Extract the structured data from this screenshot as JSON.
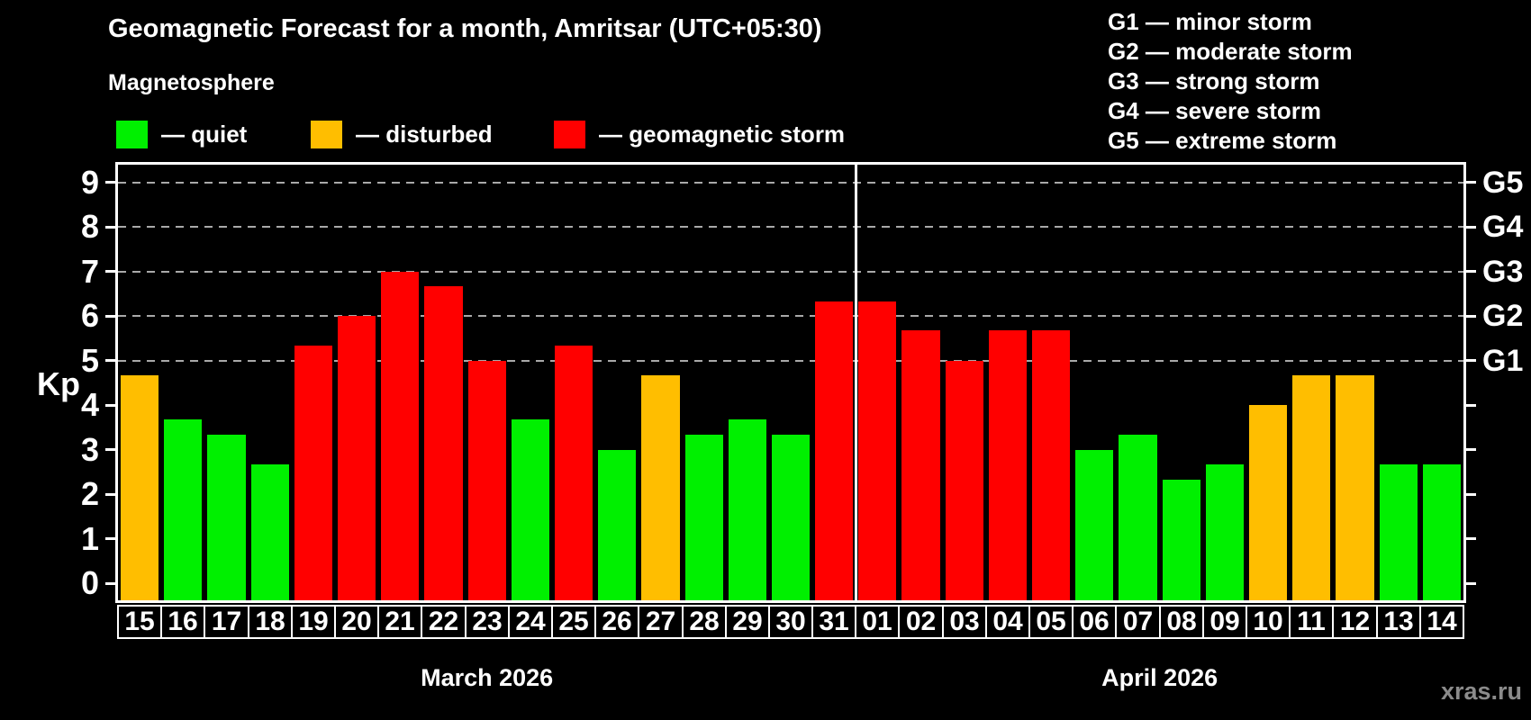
{
  "header": {
    "title": "Geomagnetic Forecast for a month, Amritsar (UTC+05:30)",
    "subtitle": "Magnetosphere"
  },
  "legend": {
    "items": [
      {
        "key": "quiet",
        "label": "— quiet",
        "color": "#00f000"
      },
      {
        "key": "disturbed",
        "label": "— disturbed",
        "color": "#ffbe00"
      },
      {
        "key": "storm",
        "label": "— geomagnetic storm",
        "color": "#ff0000"
      }
    ]
  },
  "storm_scale_legend": {
    "lines": [
      "G1 — minor storm",
      "G2 — moderate storm",
      "G3 — strong storm",
      "G4 — severe storm",
      "G5 — extreme storm"
    ]
  },
  "axes": {
    "y_label": "Kp",
    "y_ticks": [
      0,
      1,
      2,
      3,
      4,
      5,
      6,
      7,
      8,
      9
    ],
    "gridlines_at": [
      5,
      6,
      7,
      8,
      9
    ],
    "right_ticks": [
      {
        "value": 5,
        "label": "G1"
      },
      {
        "value": 6,
        "label": "G2"
      },
      {
        "value": 7,
        "label": "G3"
      },
      {
        "value": 8,
        "label": "G4"
      },
      {
        "value": 9,
        "label": "G5"
      }
    ]
  },
  "months": [
    {
      "label": "March 2026"
    },
    {
      "label": "April 2026"
    }
  ],
  "watermark": "xras.ru",
  "chart_data": {
    "type": "bar",
    "title": "Geomagnetic Forecast for a month, Amritsar (UTC+05:30)",
    "subtitle": "Magnetosphere",
    "xlabel": "",
    "ylabel": "Kp",
    "ylim": [
      0,
      9.4
    ],
    "grid": "dashed horizontal lines at Kp 5-9 only (G1-G5 levels)",
    "legend_position": "top-left",
    "bars": [
      {
        "day": "15",
        "month": "March 2026",
        "value": 4.67,
        "status": "disturbed"
      },
      {
        "day": "16",
        "month": "March 2026",
        "value": 3.67,
        "status": "quiet"
      },
      {
        "day": "17",
        "month": "March 2026",
        "value": 3.33,
        "status": "quiet"
      },
      {
        "day": "18",
        "month": "March 2026",
        "value": 2.67,
        "status": "quiet"
      },
      {
        "day": "19",
        "month": "March 2026",
        "value": 5.33,
        "status": "storm"
      },
      {
        "day": "20",
        "month": "March 2026",
        "value": 6.0,
        "status": "storm"
      },
      {
        "day": "21",
        "month": "March 2026",
        "value": 7.0,
        "status": "storm"
      },
      {
        "day": "22",
        "month": "March 2026",
        "value": 6.67,
        "status": "storm"
      },
      {
        "day": "23",
        "month": "March 2026",
        "value": 5.0,
        "status": "storm"
      },
      {
        "day": "24",
        "month": "March 2026",
        "value": 3.67,
        "status": "quiet"
      },
      {
        "day": "25",
        "month": "March 2026",
        "value": 5.33,
        "status": "storm"
      },
      {
        "day": "26",
        "month": "March 2026",
        "value": 3.0,
        "status": "quiet"
      },
      {
        "day": "27",
        "month": "March 2026",
        "value": 4.67,
        "status": "disturbed"
      },
      {
        "day": "28",
        "month": "March 2026",
        "value": 3.33,
        "status": "quiet"
      },
      {
        "day": "29",
        "month": "March 2026",
        "value": 3.67,
        "status": "quiet"
      },
      {
        "day": "30",
        "month": "March 2026",
        "value": 3.33,
        "status": "quiet"
      },
      {
        "day": "31",
        "month": "March 2026",
        "value": 6.33,
        "status": "storm"
      },
      {
        "day": "01",
        "month": "April 2026",
        "value": 6.33,
        "status": "storm"
      },
      {
        "day": "02",
        "month": "April 2026",
        "value": 5.67,
        "status": "storm"
      },
      {
        "day": "03",
        "month": "April 2026",
        "value": 5.0,
        "status": "storm"
      },
      {
        "day": "04",
        "month": "April 2026",
        "value": 5.67,
        "status": "storm"
      },
      {
        "day": "05",
        "month": "April 2026",
        "value": 5.67,
        "status": "storm"
      },
      {
        "day": "06",
        "month": "April 2026",
        "value": 3.0,
        "status": "quiet"
      },
      {
        "day": "07",
        "month": "April 2026",
        "value": 3.33,
        "status": "quiet"
      },
      {
        "day": "08",
        "month": "April 2026",
        "value": 2.33,
        "status": "quiet"
      },
      {
        "day": "09",
        "month": "April 2026",
        "value": 2.67,
        "status": "quiet"
      },
      {
        "day": "10",
        "month": "April 2026",
        "value": 4.0,
        "status": "disturbed"
      },
      {
        "day": "11",
        "month": "April 2026",
        "value": 4.67,
        "status": "disturbed"
      },
      {
        "day": "12",
        "month": "April 2026",
        "value": 4.67,
        "status": "disturbed"
      },
      {
        "day": "13",
        "month": "April 2026",
        "value": 2.67,
        "status": "quiet"
      },
      {
        "day": "14",
        "month": "April 2026",
        "value": 2.67,
        "status": "quiet"
      }
    ]
  }
}
